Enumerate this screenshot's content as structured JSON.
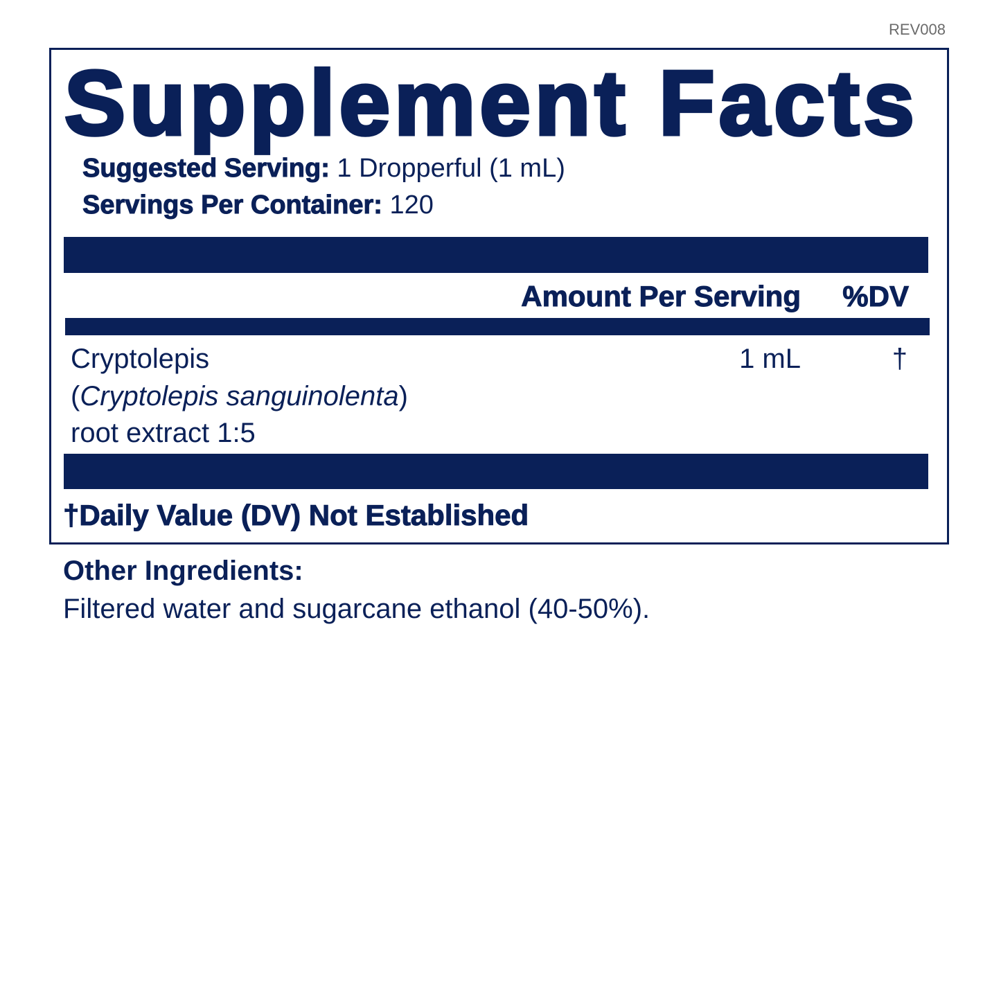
{
  "revision": "REV008",
  "title": "Supplement Facts",
  "serving": {
    "label": "Suggested Serving:",
    "value": "1 Dropperful (1 mL)"
  },
  "servings_per_container": {
    "label": "Servings Per Container:",
    "value": "120"
  },
  "table": {
    "headers": {
      "amount": "Amount Per Serving",
      "dv": "%DV"
    },
    "rows": [
      {
        "name_line1": "Cryptolepis",
        "latin_open": "(",
        "latin": "Cryptolepis sanguinolenta",
        "latin_close": ")",
        "name_line3": "root extract 1:5",
        "amount": "1 mL",
        "dv": "†"
      }
    ]
  },
  "footnote": "†Daily Value (DV) Not Established",
  "other_ingredients": {
    "label": "Other Ingredients:",
    "text": "Filtered water and sugarcane ethanol (40-50%)."
  },
  "colors": {
    "navy": "#0a2058",
    "revision_gray": "#6b6b6b"
  }
}
